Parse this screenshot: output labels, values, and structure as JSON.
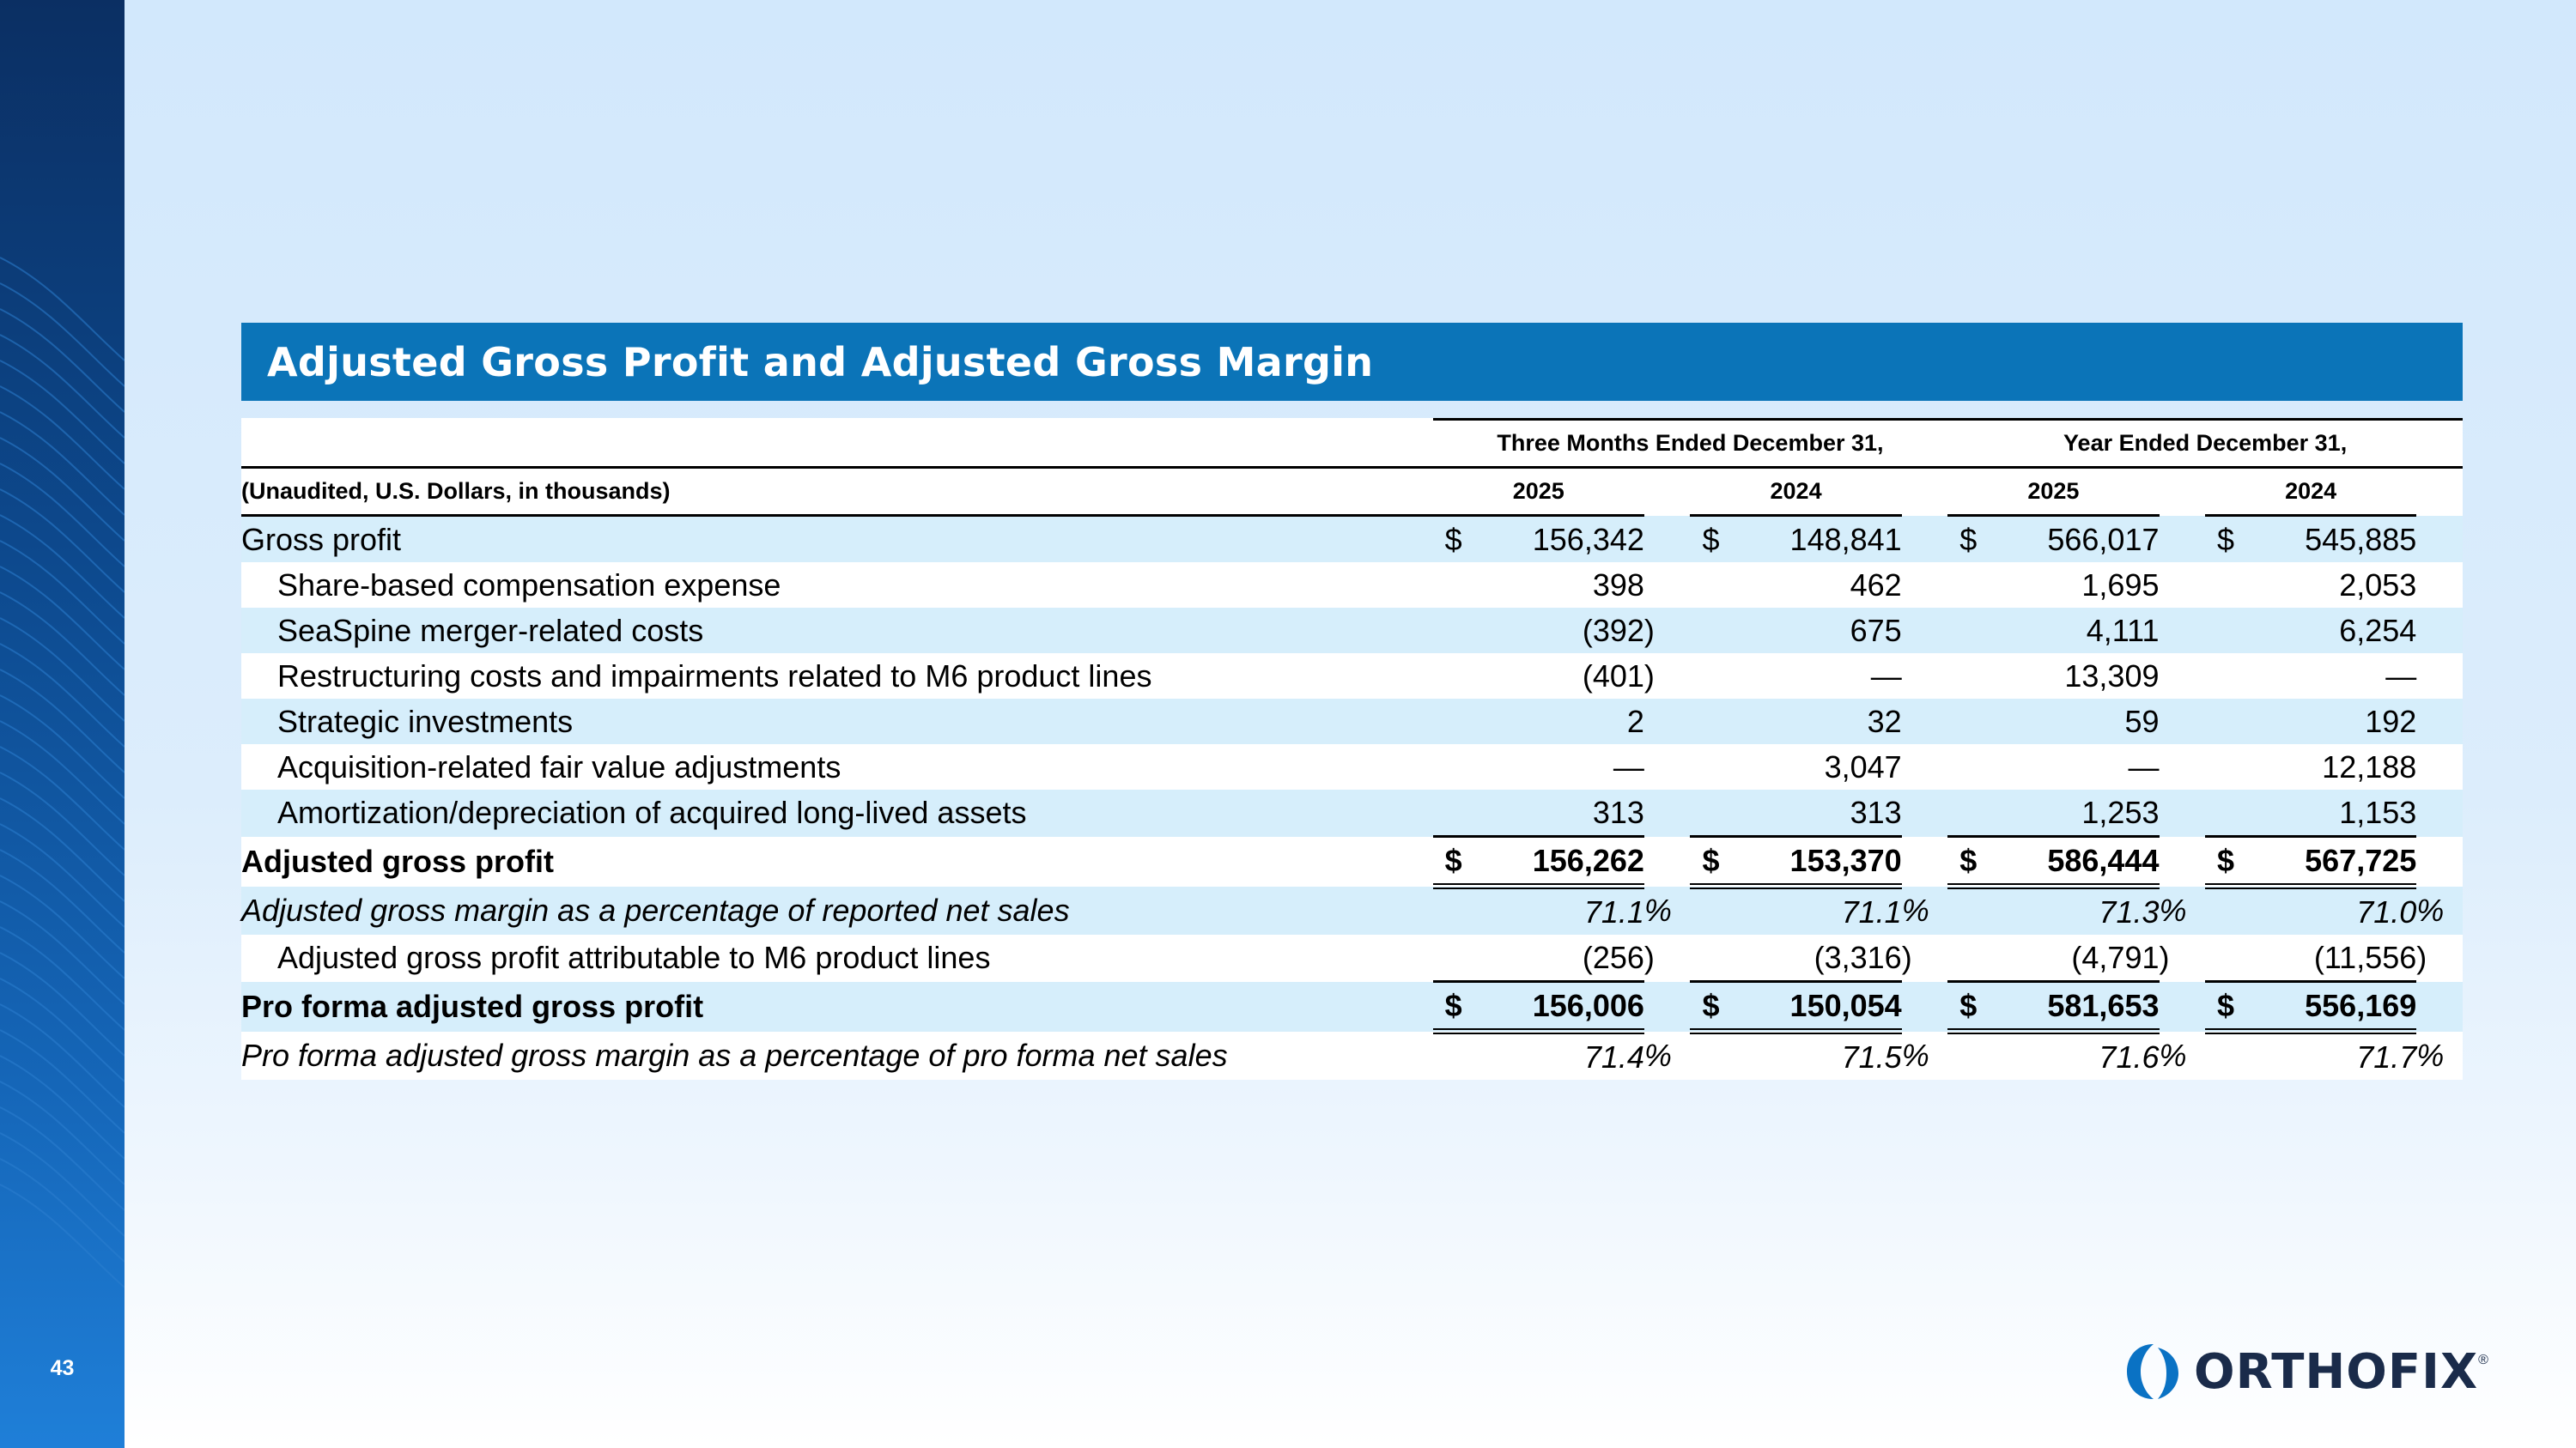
{
  "slide": {
    "page_number": "43",
    "title": "Adjusted Gross Profit and Adjusted Gross Margin"
  },
  "table": {
    "group_headers": {
      "three_months": "Three Months Ended December 31,",
      "year": "Year Ended December 31,"
    },
    "units_label": "(Unaudited, U.S. Dollars, in thousands)",
    "years": [
      "2025",
      "2024",
      "2025",
      "2024"
    ],
    "rows": [
      {
        "label": "Gross profit",
        "dollar": "$",
        "values": [
          "156,342",
          "148,841",
          "566,017",
          "545,885"
        ]
      },
      {
        "label": "Share-based compensation expense",
        "values": [
          "398",
          "462",
          "1,695",
          "2,053"
        ]
      },
      {
        "label": "SeaSpine merger-related costs",
        "values": [
          "(392",
          "675",
          "4,111",
          "6,254"
        ]
      },
      {
        "label": "Restructuring costs and impairments related to M6 product lines",
        "values": [
          "(401",
          "—",
          "13,309",
          "—"
        ]
      },
      {
        "label": "Strategic investments",
        "values": [
          "2",
          "32",
          "59",
          "192"
        ]
      },
      {
        "label": "Acquisition-related fair value adjustments",
        "values": [
          "—",
          "3,047",
          "—",
          "12,188"
        ]
      },
      {
        "label": "Amortization/depreciation of acquired long-lived assets",
        "values": [
          "313",
          "313",
          "1,253",
          "1,153"
        ]
      },
      {
        "label": "Adjusted gross profit",
        "dollar": "$",
        "values": [
          "156,262",
          "153,370",
          "586,444",
          "567,725"
        ]
      },
      {
        "label": "Adjusted gross margin as a percentage of reported net sales",
        "values": [
          "71.1",
          "71.1",
          "71.3",
          "71.0"
        ]
      },
      {
        "label": "Adjusted gross profit attributable to M6 product lines",
        "values": [
          "(256",
          "(3,316",
          "(4,791",
          "(11,556"
        ]
      },
      {
        "label": "Pro forma adjusted gross profit",
        "dollar": "$",
        "values": [
          "156,006",
          "150,054",
          "581,653",
          "556,169"
        ]
      },
      {
        "label": "Pro forma adjusted gross margin as a percentage of pro forma net sales",
        "values": [
          "71.4",
          "71.5",
          "71.6",
          "71.7"
        ]
      }
    ],
    "close_paren": ")",
    "percent": "%"
  },
  "logo": {
    "text": "ORTHOFIX",
    "mark": "®"
  },
  "colors": {
    "title_bar": "#0b74b8",
    "row_shade": "#d6eefb",
    "sidebar_dark": "#0b2f63"
  }
}
